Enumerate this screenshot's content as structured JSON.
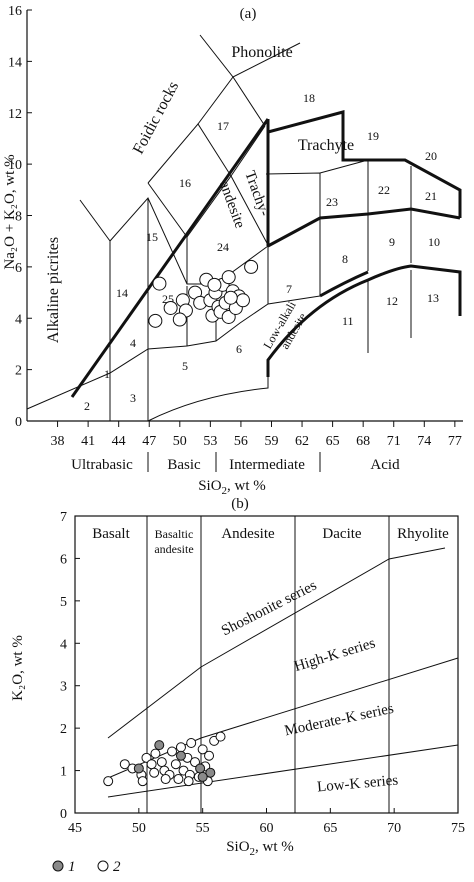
{
  "chart_data": [
    {
      "id": "a",
      "type": "scatter",
      "panel_label": "(a)",
      "xlabel_main": "SiO",
      "xlabel_sub": "2",
      "xlabel_tail": ", wt %",
      "ylabel": "Na₂O + K₂O, wt %",
      "xlim": [
        35,
        77.8
      ],
      "ylim": [
        0,
        16
      ],
      "xticks": [
        "38",
        "41",
        "44",
        "47",
        "50",
        "53",
        "56",
        "59",
        "62",
        "65",
        "68",
        "71",
        "74",
        "77"
      ],
      "yticks": [
        "0",
        "2",
        "4",
        "6",
        "8",
        "10",
        "12",
        "14",
        "16"
      ],
      "groups": [
        "Ultrabasic",
        "Basic",
        "Intermediate",
        "Acid"
      ],
      "field_names": [
        "Phonolite",
        "Foidic rocks",
        "Trachyte",
        "Trachy-",
        "andesite",
        "Alkaline picrites",
        "Low-alkali",
        "andesite"
      ],
      "field_numbers": [
        "1",
        "2",
        "3",
        "4",
        "5",
        "6",
        "7",
        "8",
        "9",
        "10",
        "11",
        "12",
        "13",
        "14",
        "15",
        "16",
        "17",
        "18",
        "19",
        "20",
        "21",
        "22",
        "23",
        "24",
        "25"
      ],
      "points": [
        {
          "x": 48.0,
          "y": 5.35
        },
        {
          "x": 47.6,
          "y": 3.9
        },
        {
          "x": 49.1,
          "y": 4.4
        },
        {
          "x": 50.3,
          "y": 4.7
        },
        {
          "x": 50.6,
          "y": 4.3
        },
        {
          "x": 50.0,
          "y": 3.95
        },
        {
          "x": 51.5,
          "y": 5.0
        },
        {
          "x": 52.0,
          "y": 4.6
        },
        {
          "x": 52.6,
          "y": 5.5
        },
        {
          "x": 53.0,
          "y": 4.7
        },
        {
          "x": 53.2,
          "y": 4.1
        },
        {
          "x": 53.5,
          "y": 5.0
        },
        {
          "x": 53.8,
          "y": 4.45
        },
        {
          "x": 54.0,
          "y": 4.25
        },
        {
          "x": 54.2,
          "y": 5.3
        },
        {
          "x": 54.5,
          "y": 4.6
        },
        {
          "x": 54.8,
          "y": 4.05
        },
        {
          "x": 55.2,
          "y": 5.05
        },
        {
          "x": 55.5,
          "y": 4.4
        },
        {
          "x": 55.8,
          "y": 4.85
        },
        {
          "x": 56.2,
          "y": 4.7
        },
        {
          "x": 57.0,
          "y": 6.0
        },
        {
          "x": 53.4,
          "y": 5.3
        },
        {
          "x": 54.8,
          "y": 5.6
        },
        {
          "x": 55.0,
          "y": 4.8
        }
      ]
    },
    {
      "id": "b",
      "type": "scatter",
      "panel_label": "(b)",
      "xlabel_main": "SiO",
      "xlabel_sub": "2",
      "xlabel_tail": ", wt %",
      "ylabel": "K₂O, wt %",
      "xlim": [
        45,
        75
      ],
      "ylim": [
        0,
        7
      ],
      "xticks": [
        "45",
        "50",
        "55",
        "60",
        "65",
        "70",
        "75"
      ],
      "yticks": [
        "0",
        "1",
        "2",
        "3",
        "4",
        "5",
        "6",
        "7"
      ],
      "fields": [
        "Basalt",
        "Basaltic",
        "andesite",
        "Andesite",
        "Dacite",
        "Rhyolite"
      ],
      "series_labels": [
        "Shoshonite series",
        "High-K series",
        "Moderate-K series",
        "Low-K series"
      ],
      "legend": [
        {
          "marker": "filled",
          "label": "1"
        },
        {
          "marker": "open",
          "label": "2"
        }
      ],
      "series": [
        {
          "name": "1",
          "points": [
            {
              "x": 50.0,
              "y": 1.05
            },
            {
              "x": 51.6,
              "y": 1.6
            },
            {
              "x": 53.3,
              "y": 1.35
            },
            {
              "x": 54.8,
              "y": 1.05
            },
            {
              "x": 55.6,
              "y": 0.95
            },
            {
              "x": 55.0,
              "y": 0.85
            }
          ]
        },
        {
          "name": "2",
          "points": [
            {
              "x": 47.6,
              "y": 0.75
            },
            {
              "x": 48.9,
              "y": 1.15
            },
            {
              "x": 49.5,
              "y": 1.05
            },
            {
              "x": 50.2,
              "y": 0.9
            },
            {
              "x": 50.3,
              "y": 0.75
            },
            {
              "x": 50.6,
              "y": 1.3
            },
            {
              "x": 51.0,
              "y": 1.15
            },
            {
              "x": 51.3,
              "y": 1.4
            },
            {
              "x": 51.8,
              "y": 1.2
            },
            {
              "x": 52.0,
              "y": 1.0
            },
            {
              "x": 52.4,
              "y": 0.9
            },
            {
              "x": 52.6,
              "y": 1.45
            },
            {
              "x": 52.9,
              "y": 1.15
            },
            {
              "x": 53.1,
              "y": 0.8
            },
            {
              "x": 53.3,
              "y": 1.55
            },
            {
              "x": 53.5,
              "y": 1.0
            },
            {
              "x": 53.8,
              "y": 1.3
            },
            {
              "x": 54.0,
              "y": 0.9
            },
            {
              "x": 54.1,
              "y": 1.65
            },
            {
              "x": 54.4,
              "y": 1.2
            },
            {
              "x": 54.7,
              "y": 0.85
            },
            {
              "x": 55.0,
              "y": 1.5
            },
            {
              "x": 55.2,
              "y": 1.1
            },
            {
              "x": 55.5,
              "y": 1.35
            },
            {
              "x": 55.9,
              "y": 1.7
            },
            {
              "x": 56.4,
              "y": 1.8
            },
            {
              "x": 52.1,
              "y": 0.8
            },
            {
              "x": 53.9,
              "y": 0.75
            },
            {
              "x": 55.4,
              "y": 0.75
            },
            {
              "x": 51.2,
              "y": 0.95
            }
          ]
        }
      ]
    }
  ]
}
